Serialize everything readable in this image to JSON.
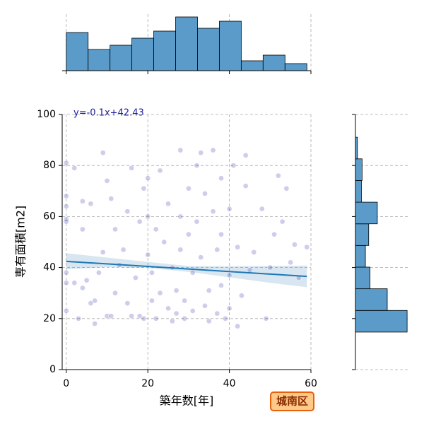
{
  "chart_data": [
    {
      "type": "scatter",
      "annotation": "y=-0.1x+42.43",
      "x_label": "築年数[年]",
      "y_label": "専有面積[m2]",
      "badge": "城南区",
      "color": "#3a3ab0",
      "line_color": "#1f77b4",
      "grid": true,
      "xlim": [
        -1,
        60
      ],
      "ylim": [
        0,
        100
      ],
      "xticks": [
        0,
        20,
        40,
        60
      ],
      "yticks": [
        0,
        20,
        40,
        60,
        80,
        100
      ],
      "x": [
        0,
        0,
        0,
        0,
        0,
        0,
        0,
        0,
        2,
        2,
        3,
        4,
        4,
        4,
        5,
        6,
        6,
        7,
        7,
        8,
        9,
        9,
        10,
        10,
        11,
        11,
        12,
        12,
        13,
        14,
        15,
        15,
        16,
        16,
        17,
        18,
        18,
        19,
        19,
        20,
        20,
        20,
        21,
        21,
        22,
        22,
        23,
        23,
        24,
        25,
        25,
        26,
        26,
        27,
        27,
        28,
        28,
        28,
        29,
        29,
        30,
        30,
        31,
        31,
        32,
        32,
        33,
        33,
        34,
        34,
        35,
        35,
        36,
        36,
        37,
        37,
        38,
        38,
        38,
        39,
        40,
        40,
        40,
        41,
        42,
        42,
        43,
        44,
        44,
        45,
        46,
        48,
        49,
        50,
        51,
        52,
        53,
        54,
        55,
        56,
        57,
        59
      ],
      "y": [
        81,
        68,
        64,
        59,
        58,
        38,
        34,
        23,
        79,
        34,
        20,
        32,
        55,
        66,
        35,
        26,
        65,
        18,
        27,
        38,
        46,
        85,
        74,
        21,
        21,
        67,
        55,
        30,
        41,
        47,
        26,
        62,
        79,
        21,
        36,
        58,
        21,
        71,
        20,
        45,
        75,
        60,
        38,
        27,
        20,
        55,
        30,
        78,
        50,
        24,
        65,
        19,
        40,
        31,
        22,
        86,
        60,
        47,
        27,
        20,
        71,
        53,
        38,
        23,
        80,
        58,
        85,
        44,
        25,
        69,
        31,
        19,
        86,
        62,
        47,
        22,
        75,
        53,
        33,
        20,
        37,
        63,
        24,
        80,
        48,
        17,
        29,
        84,
        72,
        39,
        46,
        63,
        20,
        40,
        53,
        76,
        58,
        71,
        42,
        49,
        36,
        48
      ],
      "fit": {
        "x": [
          0,
          59
        ],
        "y": [
          42.43,
          36.53
        ]
      },
      "band": {
        "x": [
          0,
          10,
          20,
          30,
          40,
          50,
          59
        ],
        "lower": [
          39.3,
          40.2,
          39.8,
          38.3,
          36.2,
          34,
          32.3
        ],
        "upper": [
          45.6,
          43.9,
          42.2,
          40.6,
          40.5,
          40.6,
          40.8
        ]
      }
    },
    {
      "type": "histogram",
      "color": "#5a9bc9",
      "grid": true,
      "bins": [
        0,
        5.36,
        10.73,
        16.09,
        21.45,
        26.82,
        32.18,
        37.55,
        42.91,
        48.27,
        53.64,
        59
      ],
      "counts": [
        27,
        15,
        18,
        23,
        28,
        38,
        30,
        35,
        7,
        11,
        5
      ],
      "xlim": [
        -1,
        60
      ],
      "ylim": [
        0,
        40
      ],
      "xticks": [
        0,
        20,
        40,
        60
      ]
    },
    {
      "type": "histogram",
      "orientation": "horizontal",
      "color": "#5a9bc9",
      "grid": true,
      "bins": [
        14.7,
        23.19,
        31.68,
        40.17,
        48.66,
        57.14,
        65.63,
        74.12,
        82.61,
        91.1
      ],
      "counts": [
        78,
        48,
        22,
        15,
        20,
        33,
        9,
        10,
        3
      ],
      "xlim": [
        0,
        80
      ],
      "ylim": [
        0,
        100
      ],
      "yticks": [
        0,
        20,
        40,
        60,
        80,
        100
      ]
    }
  ]
}
